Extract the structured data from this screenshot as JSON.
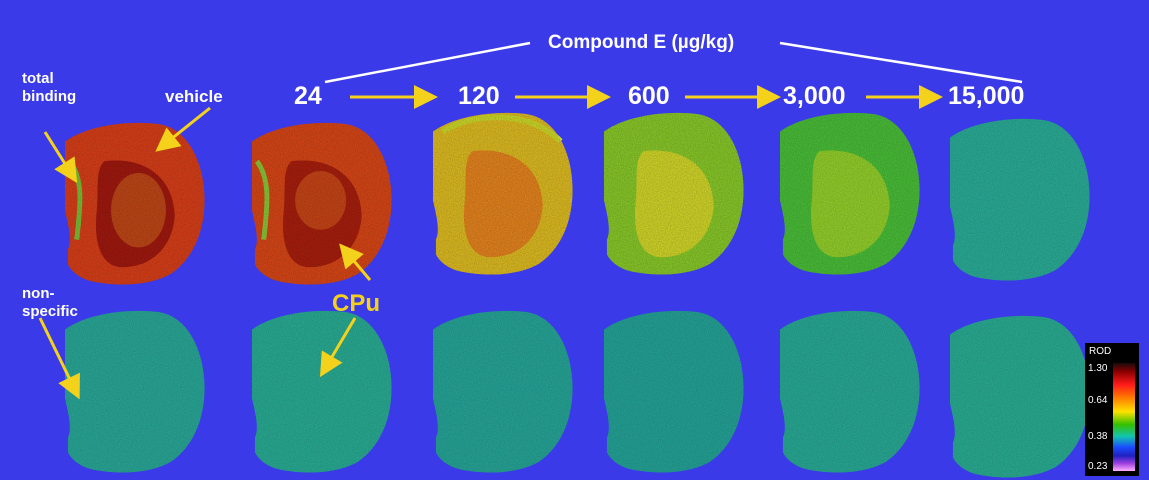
{
  "title": "Compound E (µg/kg)",
  "doses": [
    "24",
    "120",
    "600",
    "3,000",
    "15,000"
  ],
  "labels": {
    "total_binding": "total binding",
    "vehicle": "vehicle",
    "non_specific": "non-specific",
    "cpu": "CPu"
  },
  "colorbar": {
    "title": "ROD",
    "ticks": [
      "1.30",
      "0.64",
      "0.38",
      "0.23"
    ]
  },
  "colors": {
    "background": "#3a3ae8",
    "label": "#ffffff",
    "arrow": "#f4d21c"
  }
}
